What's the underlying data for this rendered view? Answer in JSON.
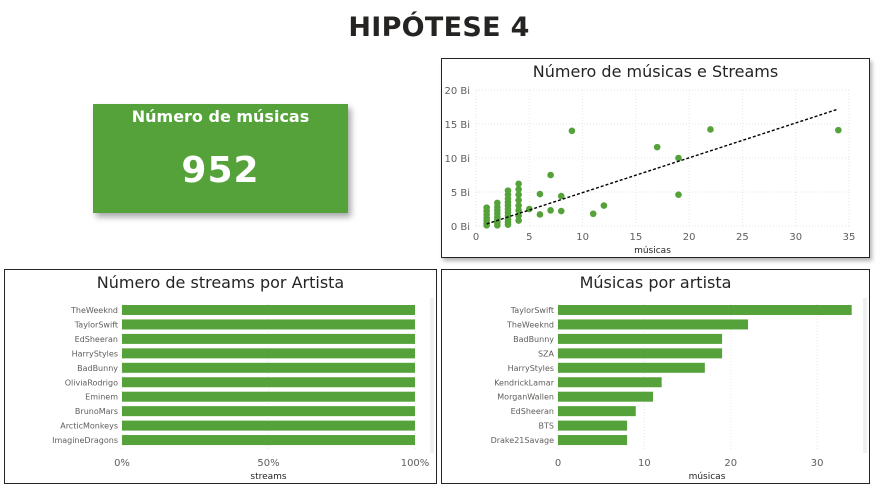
{
  "page": {
    "title": "HIPÓTESE 4"
  },
  "kpi": {
    "label": "Número de músicas",
    "value": "952",
    "color": "#55a23a"
  },
  "colors": {
    "accent": "#55a23a",
    "grid": "#e6e6e6",
    "trend": "#000000"
  },
  "chart_data": [
    {
      "id": "scatter",
      "type": "scatter",
      "title": "Número de músicas e Streams",
      "xlabel": "músicas",
      "ylabel": "",
      "xlim": [
        0,
        35
      ],
      "ylim": [
        0,
        20
      ],
      "xticks": [
        "0",
        "5",
        "10",
        "15",
        "20",
        "25",
        "30",
        "35"
      ],
      "yticks": [
        "0 Bi",
        "5 Bi",
        "10 Bi",
        "15 Bi",
        "20 Bi"
      ],
      "trendline": {
        "style": "dashed",
        "x": [
          1,
          34
        ],
        "y": [
          0.3,
          17.2
        ]
      },
      "points": [
        [
          1,
          0.1
        ],
        [
          1,
          0.4
        ],
        [
          1,
          0.8
        ],
        [
          1,
          1.2
        ],
        [
          1,
          1.7
        ],
        [
          1,
          2.2
        ],
        [
          1,
          2.7
        ],
        [
          2,
          0.1
        ],
        [
          2,
          0.5
        ],
        [
          2,
          0.9
        ],
        [
          2,
          1.3
        ],
        [
          2,
          1.8
        ],
        [
          2,
          2.3
        ],
        [
          2,
          2.8
        ],
        [
          2,
          3.4
        ],
        [
          3,
          0.2
        ],
        [
          3,
          0.6
        ],
        [
          3,
          1.0
        ],
        [
          3,
          1.5
        ],
        [
          3,
          2.0
        ],
        [
          3,
          2.5
        ],
        [
          3,
          3.0
        ],
        [
          3,
          3.5
        ],
        [
          3,
          4.0
        ],
        [
          3,
          4.6
        ],
        [
          3,
          5.2
        ],
        [
          4,
          0.8
        ],
        [
          4,
          1.5
        ],
        [
          4,
          2.3
        ],
        [
          4,
          3.0
        ],
        [
          4,
          3.8
        ],
        [
          4,
          4.6
        ],
        [
          4,
          5.4
        ],
        [
          4,
          6.2
        ],
        [
          5,
          2.5
        ],
        [
          6,
          1.7
        ],
        [
          6,
          4.7
        ],
        [
          7,
          2.3
        ],
        [
          7,
          7.5
        ],
        [
          8,
          2.2
        ],
        [
          8,
          4.4
        ],
        [
          9,
          14.0
        ],
        [
          11,
          1.8
        ],
        [
          12,
          3.0
        ],
        [
          17,
          11.6
        ],
        [
          19,
          10.0
        ],
        [
          19,
          4.6
        ],
        [
          22,
          14.2
        ],
        [
          34,
          14.1
        ]
      ]
    },
    {
      "id": "streams",
      "type": "bar",
      "orientation": "horizontal",
      "stacking": "percent",
      "title": "Número de streams por Artista",
      "xlabel": "streams",
      "xticks": [
        "0%",
        "50%",
        "100%"
      ],
      "categories": [
        "TheWeeknd",
        "TaylorSwift",
        "EdSheeran",
        "HarryStyles",
        "BadBunny",
        "OliviaRodrigo",
        "Eminem",
        "BrunoMars",
        "ArcticMonkeys",
        "ImagineDragons"
      ],
      "values": [
        100,
        100,
        100,
        100,
        100,
        100,
        100,
        100,
        100,
        100
      ]
    },
    {
      "id": "songs",
      "type": "bar",
      "orientation": "horizontal",
      "title": "Músicas por artista",
      "xlabel": "músicas",
      "xlim": [
        0,
        34.5
      ],
      "xticks": [
        "0",
        "10",
        "20",
        "30"
      ],
      "categories": [
        "TaylorSwift",
        "TheWeeknd",
        "BadBunny",
        "SZA",
        "HarryStyles",
        "KendrickLamar",
        "MorganWallen",
        "EdSheeran",
        "BTS",
        "Drake21Savage"
      ],
      "values": [
        34,
        22,
        19,
        19,
        17,
        12,
        11,
        9,
        8,
        8
      ]
    }
  ]
}
